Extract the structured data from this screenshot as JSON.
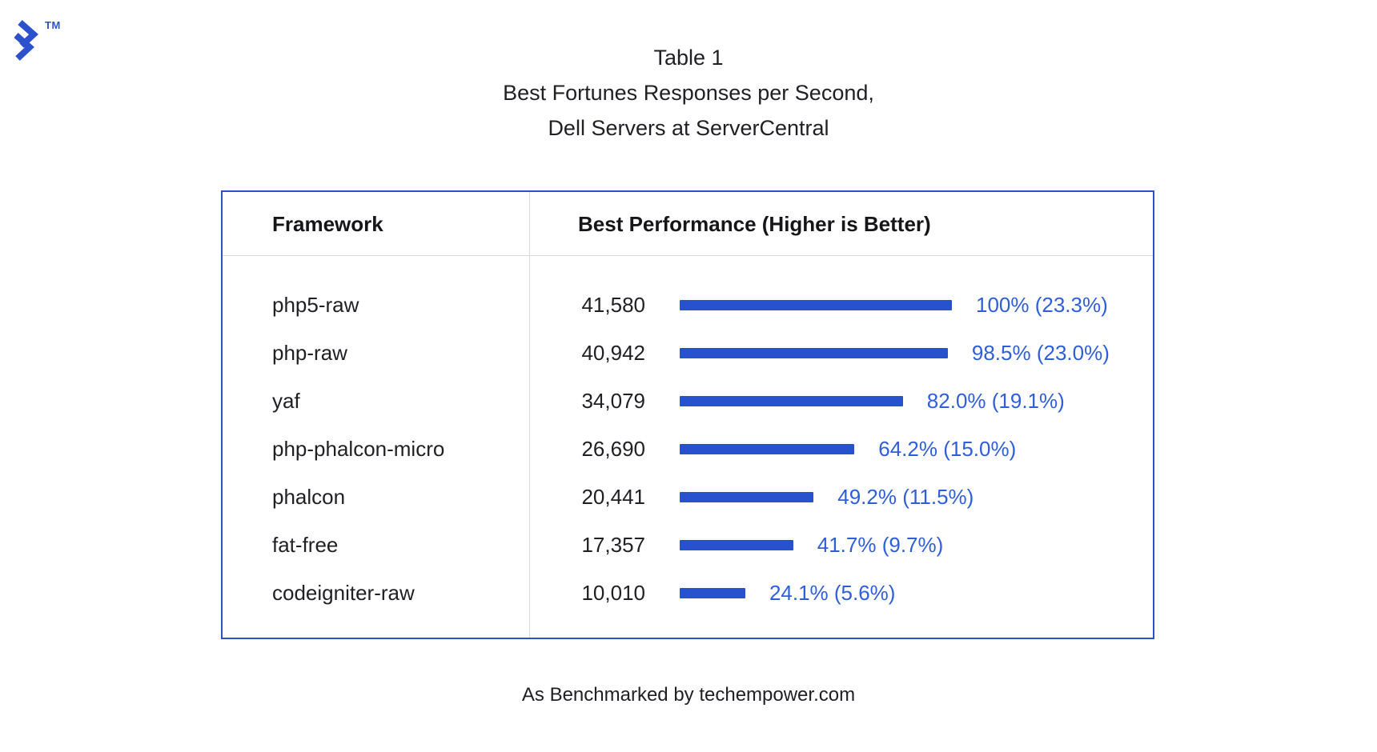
{
  "chart_data": {
    "type": "bar",
    "title": "Table 1",
    "subtitle": "Best Fortunes Responses per Second, Dell Servers at ServerCentral",
    "orientation": "horizontal",
    "grid": false,
    "legend": false,
    "categories": [
      "php5-raw",
      "php-raw",
      "yaf",
      "php-phalcon-micro",
      "phalcon",
      "fat-free",
      "codeigniter-raw"
    ],
    "series": [
      {
        "name": "Best Fortunes responses per second",
        "values": [
          41580,
          40942,
          34079,
          26690,
          20441,
          17357,
          10010
        ]
      }
    ],
    "percent_of_best": [
      100,
      98.5,
      82.0,
      64.2,
      49.2,
      41.7,
      24.1
    ],
    "xlim": [
      0,
      100
    ],
    "bar_color": "#2852cd"
  },
  "logo": {
    "trademark": "TM"
  },
  "title": {
    "lines": [
      "Table 1",
      "Best Fortunes Responses per Second,",
      "Dell Servers at ServerCentral"
    ]
  },
  "table": {
    "headers": {
      "framework": "Framework",
      "performance": "Best Performance (Higher is Better)"
    },
    "rows": [
      {
        "framework": "php5-raw",
        "value": "41,580",
        "percent_label": "100% (23.3%)"
      },
      {
        "framework": "php-raw",
        "value": "40,942",
        "percent_label": "98.5% (23.0%)"
      },
      {
        "framework": "yaf",
        "value": "34,079",
        "percent_label": "82.0% (19.1%)"
      },
      {
        "framework": "php-phalcon-micro",
        "value": "26,690",
        "percent_label": "64.2% (15.0%)"
      },
      {
        "framework": "phalcon",
        "value": "20,441",
        "percent_label": "49.2% (11.5%)"
      },
      {
        "framework": "fat-free",
        "value": "17,357",
        "percent_label": "41.7% (9.7%)"
      },
      {
        "framework": "codeigniter-raw",
        "value": "10,010",
        "percent_label": "24.1% (5.6%)"
      }
    ]
  },
  "footer": {
    "caption": "As Benchmarked by techempower.com"
  },
  "colors": {
    "background": "#ffffff",
    "text": "#1f1f24",
    "bar": "#2852cd",
    "accent_text": "#2e5ed8",
    "border": "#2b52cc",
    "divider": "#d8d8dd"
  }
}
